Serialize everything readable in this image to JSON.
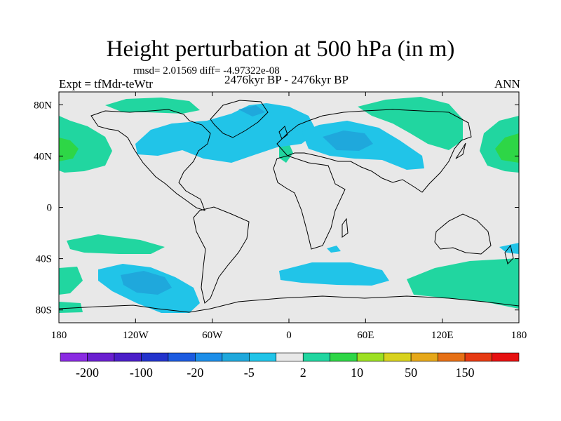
{
  "chart_data": {
    "type": "heatmap",
    "title": "Height perturbation at 500 hPa (in m)",
    "stats_text": "rmsd= 2.01569 diff= -4.97322e-08",
    "left_label": "Expt = tfMdr-teWtr",
    "center_label": "2476kyr BP - 2476kyr BP",
    "right_label": "ANN",
    "x_ticks": [
      "180",
      "120W",
      "60W",
      "0",
      "60E",
      "120E",
      "180"
    ],
    "y_ticks": [
      "80N",
      "40N",
      "0",
      "40S",
      "80S"
    ],
    "colorbar_labels": [
      "-200",
      "-100",
      "-20",
      "-5",
      "2",
      "10",
      "50",
      "150"
    ],
    "levels": [
      -200,
      -150,
      -100,
      -50,
      -20,
      -10,
      -5,
      -2,
      2,
      5,
      10,
      20,
      50,
      100,
      150,
      200
    ],
    "colors": [
      "#8a2be2",
      "#6a1fd0",
      "#4b1ec8",
      "#2333cc",
      "#1c5be0",
      "#1d8ee8",
      "#1fa8dc",
      "#21c4e8",
      "#e8e8e8",
      "#21d6a0",
      "#2ed646",
      "#9de023",
      "#d8d21e",
      "#e6a81a",
      "#e67015",
      "#e63a12",
      "#e61010"
    ],
    "features": [
      {
        "name": "north-atlantic-negative",
        "fill": "#21c4e8",
        "level": "-5..-2"
      },
      {
        "name": "eurasia-negative",
        "fill": "#21c4e8",
        "level": "-5..-2"
      },
      {
        "name": "eurasia-negative-core",
        "fill": "#1fa8dc",
        "level": "-10..-5"
      },
      {
        "name": "greenland-negative-core",
        "fill": "#1fa8dc",
        "level": "-10..-5"
      },
      {
        "name": "south-pacific-negative",
        "fill": "#21c4e8",
        "level": "-5..-2"
      },
      {
        "name": "south-pacific-negative-core",
        "fill": "#1fa8dc",
        "level": "-10..-5"
      },
      {
        "name": "south-atlantic-negative",
        "fill": "#21c4e8",
        "level": "-5..-2"
      },
      {
        "name": "north-pacific-positive",
        "fill": "#21d6a0",
        "level": "2..5"
      },
      {
        "name": "north-pacific-positive-core",
        "fill": "#2ed646",
        "level": "5..10"
      },
      {
        "name": "arctic-positive",
        "fill": "#21d6a0",
        "level": "2..5"
      },
      {
        "name": "siberia-positive",
        "fill": "#21d6a0",
        "level": "2..5"
      },
      {
        "name": "south-indian-positive",
        "fill": "#21d6a0",
        "level": "2..5"
      },
      {
        "name": "south-pacific-positive",
        "fill": "#21d6a0",
        "level": "2..5"
      },
      {
        "name": "iberia-positive",
        "fill": "#21d6a0",
        "level": "2..5"
      }
    ]
  }
}
